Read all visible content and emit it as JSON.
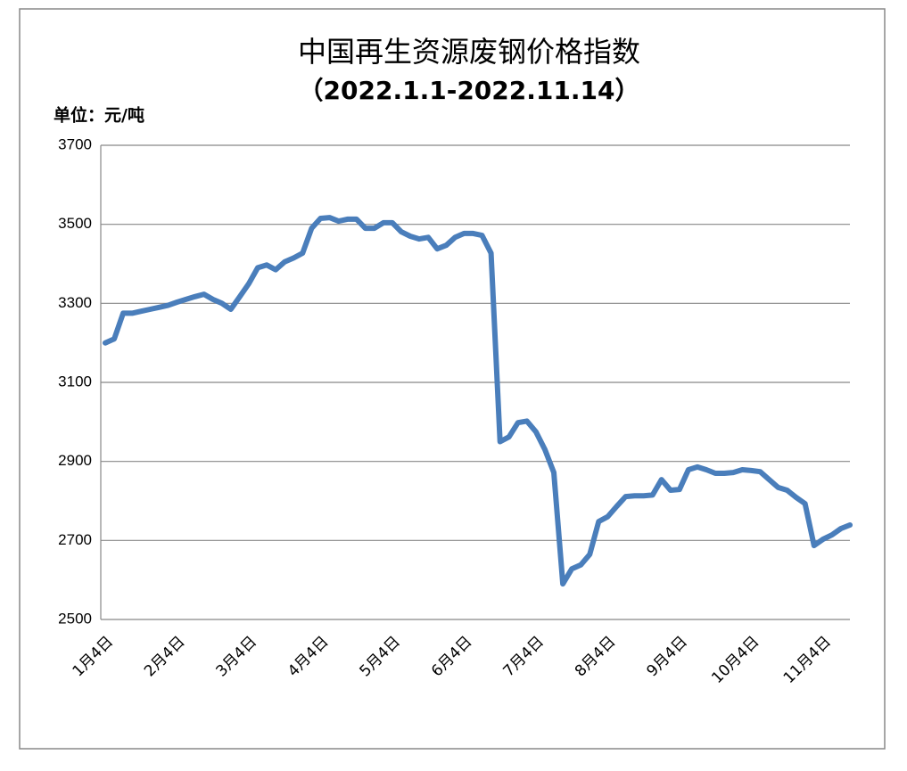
{
  "chart_data": {
    "type": "line",
    "title": "中国再生资源废钢价格指数",
    "subtitle": "（2022.1.1-2022.11.14）",
    "y_axis_label": "单位：元/吨",
    "categories": [
      "1月4日",
      null,
      null,
      null,
      null,
      null,
      null,
      null,
      "2月4日",
      null,
      null,
      null,
      null,
      null,
      null,
      null,
      "3月4日",
      null,
      null,
      null,
      null,
      null,
      null,
      null,
      "4月4日",
      null,
      null,
      null,
      null,
      null,
      null,
      null,
      "5月4日",
      null,
      null,
      null,
      null,
      null,
      null,
      null,
      "6月4日",
      null,
      null,
      null,
      null,
      null,
      null,
      null,
      "7月4日",
      null,
      null,
      null,
      null,
      null,
      null,
      null,
      "8月4日",
      null,
      null,
      null,
      null,
      null,
      null,
      null,
      "9月4日",
      null,
      null,
      null,
      null,
      null,
      null,
      null,
      "10月4日",
      null,
      null,
      null,
      null,
      null,
      null,
      null,
      "11月4日",
      null,
      null,
      null
    ],
    "series": [
      {
        "name": "废钢价格指数",
        "color": "#4a7ebb",
        "values": [
          3200,
          3210,
          3275,
          3275,
          3280,
          3285,
          3290,
          3295,
          3303,
          3310,
          3317,
          3323,
          3310,
          3300,
          3285,
          3317,
          3350,
          3390,
          3397,
          3385,
          3405,
          3415,
          3427,
          3490,
          3515,
          3517,
          3508,
          3513,
          3513,
          3490,
          3490,
          3504,
          3504,
          3481,
          3470,
          3463,
          3467,
          3438,
          3447,
          3467,
          3477,
          3477,
          3472,
          3427,
          2950,
          2962,
          2998,
          3002,
          2975,
          2930,
          2872,
          2590,
          2628,
          2638,
          2665,
          2748,
          2760,
          2786,
          2811,
          2813,
          2813,
          2815,
          2854,
          2827,
          2829,
          2879,
          2886,
          2879,
          2870,
          2870,
          2872,
          2879,
          2877,
          2874,
          2854,
          2834,
          2827,
          2809,
          2793,
          2687,
          2703,
          2714,
          2730,
          2739
        ]
      }
    ],
    "ylim": [
      2500,
      3700
    ],
    "yticks": [
      2500,
      2700,
      2900,
      3100,
      3300,
      3500,
      3700
    ],
    "grid": true
  }
}
